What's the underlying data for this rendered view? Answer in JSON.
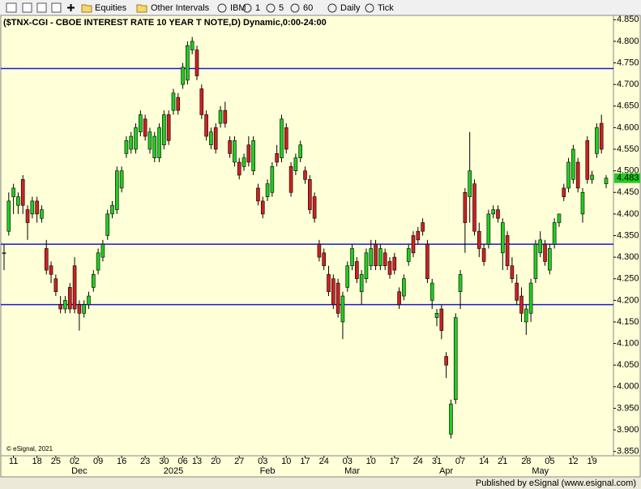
{
  "toolbar": {
    "items": [
      "Equities",
      "Other Intervals",
      "IBM",
      "1",
      "5",
      "60",
      "Daily",
      "Tick"
    ]
  },
  "footer": {
    "copyright": "© eSignal, 2021",
    "published": "Published by eSignal (www.esignal.com)"
  },
  "chart_data": {
    "type": "candlestick",
    "title": "($TNX-CGI - CBOE INTEREST RATE 10 YEAR T NOTE,D) Dynamic,0:00-24:00",
    "up_color": "#22cc22",
    "down_color": "#cc2222",
    "wick_color": "#000000",
    "open": [
      4.31,
      4.36,
      4.44,
      4.42,
      4.48,
      4.41,
      4.4,
      4.43,
      4.39,
      4.32,
      4.28,
      4.25,
      4.19,
      4.18,
      4.23,
      4.28,
      4.19,
      4.17,
      4.19,
      4.23,
      4.27,
      4.3,
      4.35,
      4.4,
      4.41,
      4.46,
      4.54,
      4.55,
      4.55,
      4.59,
      4.62,
      4.55,
      4.53,
      4.53,
      4.56,
      4.63,
      4.64,
      4.67,
      4.7,
      4.71,
      4.78,
      4.78,
      4.69,
      4.63,
      4.56,
      4.6,
      4.61,
      4.64,
      4.57,
      4.52,
      4.52,
      4.51,
      4.56,
      4.5,
      4.46,
      4.43,
      4.44,
      4.45,
      4.54,
      4.53,
      4.6,
      4.51,
      4.5,
      4.53,
      4.5,
      4.48,
      4.44,
      4.33,
      4.31,
      4.26,
      4.25,
      4.24,
      4.15,
      4.23,
      4.28,
      4.29,
      4.22,
      4.25,
      4.28,
      4.33,
      4.28,
      4.31,
      4.29,
      4.3,
      4.22,
      4.21,
      4.29,
      4.35,
      4.36,
      4.38,
      4.33,
      4.2,
      4.16,
      4.18,
      4.07,
      3.89,
      3.97,
      4.22,
      4.45,
      4.44,
      4.47,
      4.36,
      4.32,
      4.33,
      4.4,
      4.41,
      4.31,
      4.35,
      4.28,
      4.24,
      4.21,
      4.15,
      4.17,
      4.25,
      4.31,
      4.33,
      4.27,
      4.33,
      4.38,
      4.46,
      4.46,
      4.48,
      4.52,
      4.4,
      4.57,
      4.48,
      4.54,
      4.61,
      4.47
    ],
    "high": [
      4.33,
      4.45,
      4.47,
      4.45,
      4.49,
      4.42,
      4.44,
      4.44,
      4.42,
      4.34,
      4.29,
      4.26,
      4.21,
      4.21,
      4.24,
      4.3,
      4.2,
      4.2,
      4.22,
      4.27,
      4.32,
      4.34,
      4.41,
      4.43,
      4.51,
      4.51,
      4.58,
      4.59,
      4.61,
      4.64,
      4.63,
      4.6,
      4.59,
      4.61,
      4.64,
      4.64,
      4.69,
      4.68,
      4.75,
      4.8,
      4.81,
      4.79,
      4.7,
      4.64,
      4.6,
      4.61,
      4.65,
      4.66,
      4.58,
      4.58,
      4.53,
      4.54,
      4.58,
      4.58,
      4.47,
      4.44,
      4.48,
      4.52,
      4.56,
      4.63,
      4.61,
      4.52,
      4.54,
      4.57,
      4.51,
      4.49,
      4.45,
      4.34,
      4.32,
      4.28,
      4.26,
      4.25,
      4.22,
      4.29,
      4.33,
      4.3,
      4.27,
      4.32,
      4.34,
      4.34,
      4.33,
      4.32,
      4.3,
      4.31,
      4.23,
      4.26,
      4.33,
      4.36,
      4.37,
      4.39,
      4.34,
      4.25,
      4.18,
      4.19,
      4.08,
      3.97,
      4.17,
      4.27,
      4.46,
      4.59,
      4.48,
      4.38,
      4.33,
      4.41,
      4.42,
      4.42,
      4.39,
      4.36,
      4.3,
      4.26,
      4.23,
      4.19,
      4.25,
      4.34,
      4.36,
      4.34,
      4.33,
      4.39,
      4.4,
      4.47,
      4.53,
      4.56,
      4.53,
      4.46,
      4.58,
      4.5,
      4.61,
      4.63,
      4.49
    ],
    "low": [
      4.27,
      4.35,
      4.4,
      4.4,
      4.4,
      4.34,
      4.39,
      4.38,
      4.38,
      4.26,
      4.24,
      4.21,
      4.17,
      4.17,
      4.17,
      4.17,
      4.13,
      4.16,
      4.18,
      4.22,
      4.26,
      4.29,
      4.34,
      4.39,
      4.4,
      4.45,
      4.53,
      4.54,
      4.54,
      4.58,
      4.57,
      4.54,
      4.52,
      4.52,
      4.55,
      4.56,
      4.63,
      4.63,
      4.69,
      4.7,
      4.77,
      4.71,
      4.62,
      4.57,
      4.55,
      4.54,
      4.6,
      4.6,
      4.53,
      4.51,
      4.48,
      4.5,
      4.51,
      4.49,
      4.42,
      4.39,
      4.43,
      4.44,
      4.51,
      4.52,
      4.54,
      4.44,
      4.49,
      4.52,
      4.47,
      4.4,
      4.38,
      4.29,
      4.27,
      4.21,
      4.18,
      4.16,
      4.11,
      4.22,
      4.27,
      4.24,
      4.19,
      4.24,
      4.27,
      4.27,
      4.27,
      4.27,
      4.25,
      4.26,
      4.18,
      4.2,
      4.28,
      4.3,
      4.33,
      4.35,
      4.24,
      4.18,
      4.14,
      4.11,
      4.02,
      3.88,
      3.96,
      4.18,
      4.31,
      4.38,
      4.35,
      4.3,
      4.28,
      4.32,
      4.39,
      4.38,
      4.27,
      4.27,
      4.24,
      4.19,
      4.15,
      4.12,
      4.15,
      4.24,
      4.3,
      4.28,
      4.26,
      4.32,
      4.37,
      4.43,
      4.45,
      4.47,
      4.45,
      4.38,
      4.47,
      4.47,
      4.53,
      4.54,
      4.46
    ],
    "close": [
      4.31,
      4.43,
      4.46,
      4.44,
      4.42,
      4.38,
      4.43,
      4.4,
      4.41,
      4.27,
      4.26,
      4.22,
      4.18,
      4.2,
      4.18,
      4.18,
      4.17,
      4.19,
      4.21,
      4.26,
      4.31,
      4.33,
      4.4,
      4.42,
      4.5,
      4.5,
      4.57,
      4.58,
      4.6,
      4.63,
      4.58,
      4.59,
      4.58,
      4.6,
      4.63,
      4.57,
      4.68,
      4.64,
      4.74,
      4.79,
      4.8,
      4.72,
      4.63,
      4.58,
      4.59,
      4.55,
      4.64,
      4.61,
      4.54,
      4.57,
      4.49,
      4.53,
      4.52,
      4.57,
      4.43,
      4.4,
      4.47,
      4.51,
      4.52,
      4.62,
      4.55,
      4.45,
      4.53,
      4.56,
      4.48,
      4.41,
      4.39,
      4.3,
      4.28,
      4.22,
      4.19,
      4.17,
      4.21,
      4.28,
      4.32,
      4.25,
      4.26,
      4.31,
      4.32,
      4.28,
      4.32,
      4.28,
      4.26,
      4.27,
      4.19,
      4.25,
      4.32,
      4.31,
      4.34,
      4.36,
      4.25,
      4.24,
      4.17,
      4.13,
      4.05,
      3.96,
      4.16,
      4.26,
      4.38,
      4.5,
      4.36,
      4.32,
      4.29,
      4.4,
      4.41,
      4.39,
      4.38,
      4.28,
      4.25,
      4.2,
      4.17,
      4.18,
      4.24,
      4.33,
      4.34,
      4.29,
      4.32,
      4.38,
      4.4,
      4.44,
      4.52,
      4.55,
      4.46,
      4.45,
      4.48,
      4.49,
      4.6,
      4.55,
      4.483
    ],
    "last_price": 4.483,
    "hlines": [
      4.737,
      4.33,
      4.19
    ],
    "hline_color": "#1a1acc",
    "ylim": [
      3.84,
      4.86
    ],
    "yticks": [
      {
        "value": 3.85,
        "label": "3.850"
      },
      {
        "value": 3.9,
        "label": "3.900"
      },
      {
        "value": 3.95,
        "label": "3.950"
      },
      {
        "value": 4.0,
        "label": "4.000"
      },
      {
        "value": 4.05,
        "label": "4.050"
      },
      {
        "value": 4.1,
        "label": "4.100"
      },
      {
        "value": 4.15,
        "label": "4.150"
      },
      {
        "value": 4.2,
        "label": "4.200"
      },
      {
        "value": 4.25,
        "label": "4.250"
      },
      {
        "value": 4.3,
        "label": "4.300"
      },
      {
        "value": 4.35,
        "label": "4.350"
      },
      {
        "value": 4.4,
        "label": "4.400"
      },
      {
        "value": 4.45,
        "label": "4.450"
      },
      {
        "value": 4.5,
        "label": "4.500"
      },
      {
        "value": 4.55,
        "label": "4.550"
      },
      {
        "value": 4.6,
        "label": "4.600"
      },
      {
        "value": 4.65,
        "label": "4.650"
      },
      {
        "value": 4.7,
        "label": "4.700"
      },
      {
        "value": 4.75,
        "label": "4.750"
      },
      {
        "value": 4.8,
        "label": "4.800"
      },
      {
        "value": 4.85,
        "label": "4.850"
      }
    ],
    "xticks": [
      {
        "value": 2,
        "label": "11"
      },
      {
        "value": 7,
        "label": "18"
      },
      {
        "value": 11,
        "label": "25"
      },
      {
        "value": 15,
        "label": "02"
      },
      {
        "value": 20,
        "label": "09"
      },
      {
        "value": 25,
        "label": "16"
      },
      {
        "value": 30,
        "label": "23"
      },
      {
        "value": 34,
        "label": "30"
      },
      {
        "value": 38,
        "label": "06"
      },
      {
        "value": 41,
        "label": "13"
      },
      {
        "value": 45,
        "label": "20"
      },
      {
        "value": 50,
        "label": "27"
      },
      {
        "value": 55,
        "label": "03"
      },
      {
        "value": 60,
        "label": "10"
      },
      {
        "value": 64,
        "label": "17"
      },
      {
        "value": 68,
        "label": "24"
      },
      {
        "value": 73,
        "label": "03"
      },
      {
        "value": 78,
        "label": "10"
      },
      {
        "value": 83,
        "label": "17"
      },
      {
        "value": 88,
        "label": "24"
      },
      {
        "value": 92,
        "label": "31"
      },
      {
        "value": 97,
        "label": "07"
      },
      {
        "value": 102,
        "label": "14"
      },
      {
        "value": 106,
        "label": "21"
      },
      {
        "value": 111,
        "label": "28"
      },
      {
        "value": 116,
        "label": "05"
      },
      {
        "value": 121,
        "label": "12"
      },
      {
        "value": 125,
        "label": "19"
      }
    ],
    "xticks_secondary": [
      {
        "value": 16,
        "label": "Dec"
      },
      {
        "value": 36,
        "label": "2025"
      },
      {
        "value": 56,
        "label": "Feb"
      },
      {
        "value": 74,
        "label": "Mar"
      },
      {
        "value": 94,
        "label": "Apr"
      },
      {
        "value": 114,
        "label": "May"
      }
    ]
  }
}
